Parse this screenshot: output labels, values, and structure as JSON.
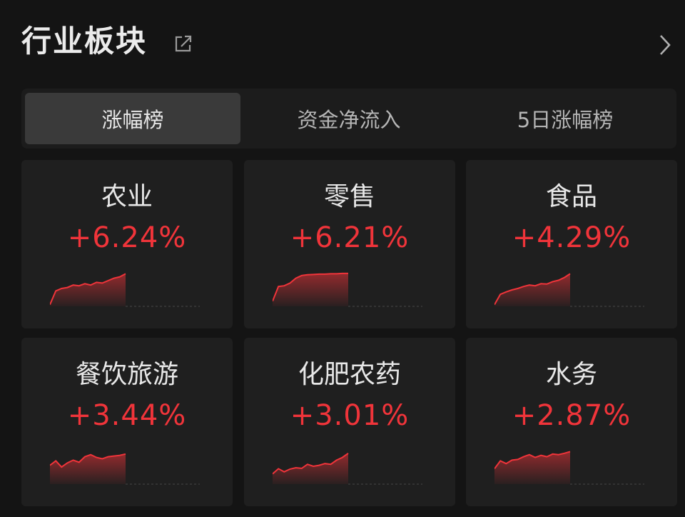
{
  "header": {
    "title": "行业板块",
    "share_icon": "share-icon",
    "more_icon": "chevron-right-icon"
  },
  "tabs": [
    {
      "label": "涨幅榜",
      "active": true
    },
    {
      "label": "资金净流入",
      "active": false
    },
    {
      "label": "5日涨幅榜",
      "active": false
    }
  ],
  "colors": {
    "up": "#f0343a",
    "background": "#141414",
    "card": "#1f1f1f"
  },
  "cards": [
    {
      "name": "农业",
      "change": "+6.24%",
      "trend": [
        0.05,
        0.45,
        0.52,
        0.55,
        0.62,
        0.6,
        0.66,
        0.62,
        0.7,
        0.68,
        0.75,
        0.82,
        0.86,
        0.95
      ]
    },
    {
      "name": "零售",
      "change": "+6.21%",
      "trend": [
        0.15,
        0.58,
        0.6,
        0.68,
        0.82,
        0.9,
        0.92,
        0.93,
        0.94,
        0.94,
        0.95,
        0.95,
        0.96,
        0.96
      ]
    },
    {
      "name": "食品",
      "change": "+4.29%",
      "trend": [
        0.05,
        0.35,
        0.42,
        0.48,
        0.52,
        0.58,
        0.62,
        0.6,
        0.66,
        0.65,
        0.72,
        0.76,
        0.84,
        0.95
      ]
    },
    {
      "name": "餐饮旅游",
      "change": "+3.44%",
      "trend": [
        0.55,
        0.68,
        0.5,
        0.62,
        0.7,
        0.64,
        0.8,
        0.86,
        0.78,
        0.74,
        0.8,
        0.82,
        0.84,
        0.88
      ]
    },
    {
      "name": "化肥农药",
      "change": "+3.01%",
      "trend": [
        0.3,
        0.45,
        0.36,
        0.44,
        0.48,
        0.46,
        0.58,
        0.52,
        0.55,
        0.6,
        0.58,
        0.7,
        0.78,
        0.9
      ]
    },
    {
      "name": "水务",
      "change": "+2.87%",
      "trend": [
        0.45,
        0.68,
        0.6,
        0.7,
        0.72,
        0.8,
        0.86,
        0.78,
        0.84,
        0.8,
        0.88,
        0.86,
        0.9,
        0.95
      ]
    }
  ]
}
